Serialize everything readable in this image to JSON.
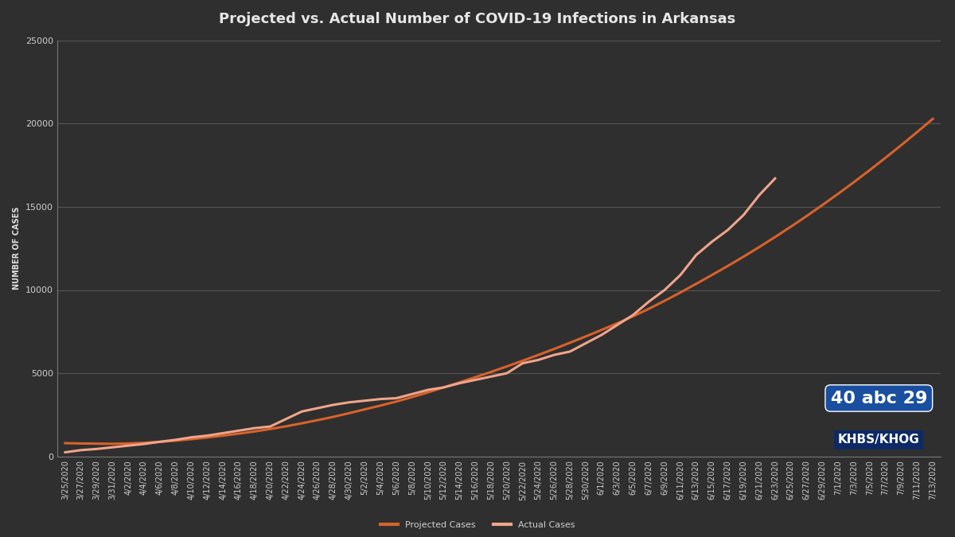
{
  "chart_data": {
    "type": "line",
    "title": "Projected vs. Actual Number of COVID-19 Infections in Arkansas",
    "y_label": "NUMBER OF CASES",
    "annotations": [
      "40 abc 29",
      "KHBS/KHOG"
    ],
    "categories": [
      "3/25/2020",
      "3/27/2020",
      "3/29/2020",
      "3/31/2020",
      "4/2/2020",
      "4/4/2020",
      "4/6/2020",
      "4/8/2020",
      "4/10/2020",
      "4/12/2020",
      "4/14/2020",
      "4/16/2020",
      "4/18/2020",
      "4/20/2020",
      "4/22/2020",
      "4/24/2020",
      "4/26/2020",
      "4/28/2020",
      "4/30/2020",
      "5/2/2020",
      "5/4/2020",
      "5/6/2020",
      "5/8/2020",
      "5/10/2020",
      "5/12/2020",
      "5/14/2020",
      "5/16/2020",
      "5/18/2020",
      "5/20/2020",
      "5/22/2020",
      "5/24/2020",
      "5/26/2020",
      "5/28/2020",
      "5/30/2020",
      "6/1/2020",
      "6/3/2020",
      "6/5/2020",
      "6/7/2020",
      "6/9/2020",
      "6/11/2020",
      "6/13/2020",
      "6/15/2020",
      "6/17/2020",
      "6/19/2020",
      "6/21/2020",
      "6/23/2020",
      "6/25/2020",
      "6/27/2020",
      "6/29/2020",
      "7/1/2020",
      "7/3/2020",
      "7/5/2020",
      "7/7/2020",
      "7/9/2020",
      "7/11/2020",
      "7/13/2020"
    ],
    "series": [
      {
        "name": "Projected Cases",
        "color": "#d9622b",
        "values": [
          800,
          780,
          770,
          760,
          780,
          820,
          880,
          950,
          1040,
          1140,
          1250,
          1370,
          1500,
          1650,
          1810,
          1990,
          2180,
          2380,
          2600,
          2830,
          3060,
          3300,
          3570,
          3850,
          4150,
          4450,
          4760,
          5080,
          5410,
          5750,
          6100,
          6460,
          6830,
          7210,
          7600,
          8000,
          8420,
          8870,
          9350,
          9850,
          10370,
          10900,
          11440,
          12000,
          12580,
          13180,
          13800,
          14440,
          15100,
          15780,
          16480,
          17200,
          17940,
          18700,
          19480,
          20280
        ]
      },
      {
        "name": "Actual Cases",
        "color": "#f0a58a",
        "values": [
          250,
          380,
          450,
          550,
          650,
          750,
          880,
          1000,
          1150,
          1250,
          1400,
          1550,
          1700,
          1800,
          2250,
          2700,
          2900,
          3100,
          3250,
          3350,
          3450,
          3500,
          3750,
          4000,
          4150,
          4400,
          4600,
          4800,
          5000,
          5600,
          5800,
          6100,
          6300,
          6800,
          7300,
          7900,
          8500,
          9300,
          10000,
          10900,
          12100,
          12900,
          13600,
          14500,
          15700,
          16700,
          null,
          null,
          null,
          null,
          null,
          null,
          null,
          null,
          null,
          null
        ]
      }
    ],
    "ylim": [
      0,
      25000
    ],
    "yticks": [
      0,
      5000,
      10000,
      15000,
      20000,
      25000
    ],
    "grid": true,
    "legend": "lower center"
  }
}
